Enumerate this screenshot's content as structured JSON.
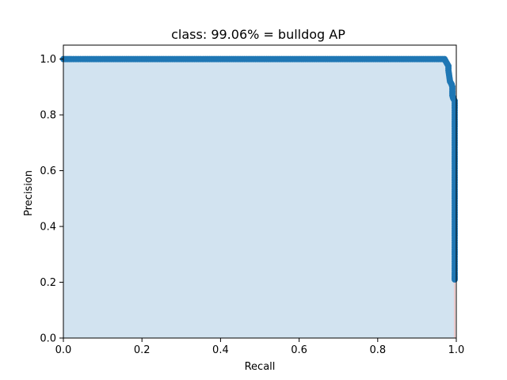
{
  "chart_data": {
    "type": "line",
    "title": "class: 99.06% = bulldog AP",
    "xlabel": "Recall",
    "ylabel": "Precision",
    "xlim": [
      0,
      1
    ],
    "ylim": [
      0,
      1.05
    ],
    "x_ticks": [
      "0.0",
      "0.2",
      "0.4",
      "0.6",
      "0.8",
      "1.0"
    ],
    "y_ticks": [
      "0.0",
      "0.2",
      "0.4",
      "0.6",
      "0.8",
      "1.0"
    ],
    "grid": false,
    "legend": "none",
    "series": [
      {
        "x": [
          0.0,
          0.02,
          0.05,
          0.1,
          0.15,
          0.2,
          0.25,
          0.3,
          0.35,
          0.4,
          0.45,
          0.5,
          0.55,
          0.6,
          0.65,
          0.7,
          0.75,
          0.8,
          0.85,
          0.9,
          0.95,
          0.97,
          0.974,
          0.976,
          0.978,
          0.98,
          0.98,
          0.982,
          0.984,
          0.986,
          0.988,
          0.99,
          0.99,
          0.992,
          0.994,
          0.996,
          0.996,
          0.996,
          0.996,
          0.996,
          0.996,
          0.996,
          0.996,
          0.996,
          0.996
        ],
        "y": [
          1.0,
          1.0,
          1.0,
          1.0,
          1.0,
          1.0,
          1.0,
          1.0,
          1.0,
          1.0,
          1.0,
          1.0,
          1.0,
          1.0,
          1.0,
          1.0,
          1.0,
          1.0,
          1.0,
          1.0,
          1.0,
          1.0,
          0.99,
          0.985,
          0.98,
          0.975,
          0.96,
          0.94,
          0.92,
          0.915,
          0.91,
          0.9,
          0.87,
          0.86,
          0.855,
          0.85,
          0.8,
          0.7,
          0.6,
          0.5,
          0.4,
          0.3,
          0.25,
          0.22,
          0.21
        ]
      }
    ],
    "colors": {
      "line": "#1f77b4",
      "fill": "#d2e3f0",
      "drop_line": "#f2a6a6"
    }
  }
}
